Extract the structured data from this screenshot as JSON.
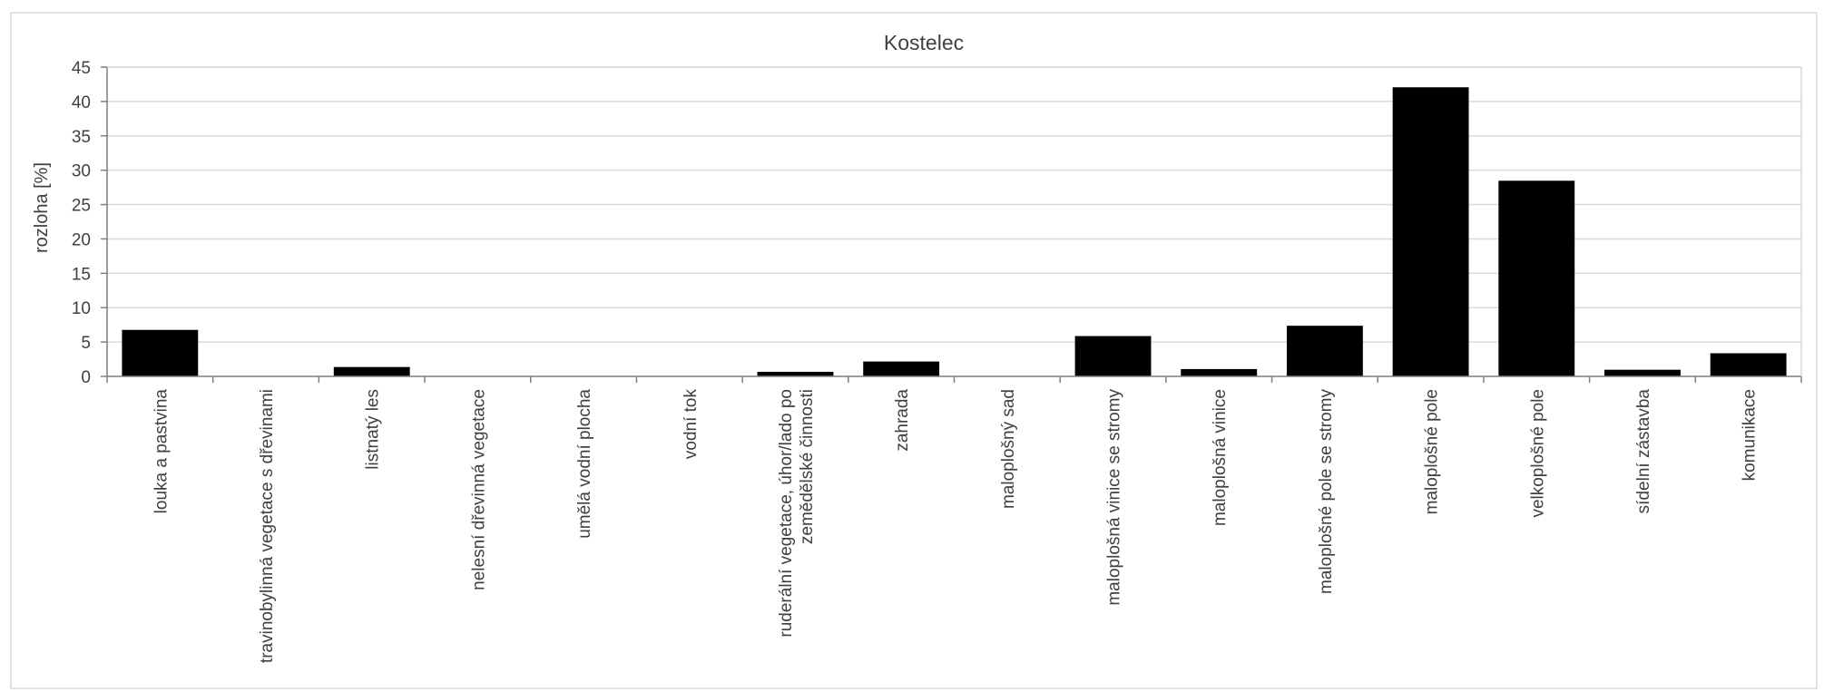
{
  "chart_data": {
    "type": "bar",
    "title": "Kostelec",
    "xlabel": "",
    "ylabel": "rozloha [%]",
    "ylim": [
      0,
      45
    ],
    "yticks": [
      0,
      5,
      10,
      15,
      20,
      25,
      30,
      35,
      40,
      45
    ],
    "grid": true,
    "legend": "none",
    "bar_color": "#000000",
    "categories": [
      [
        "louka a pastvina"
      ],
      [
        "travinobylinná vegetace s dřevinami"
      ],
      [
        "listnatý les"
      ],
      [
        "nelesní dřevinná vegetace"
      ],
      [
        "umělá vodní plocha"
      ],
      [
        "vodní tok"
      ],
      [
        "ruderální vegetace, úhor/lado po",
        "zemědělské činnosti"
      ],
      [
        "zahrada"
      ],
      [
        "maloplošný sad"
      ],
      [
        "maloplošná vinice se stromy"
      ],
      [
        "maloplošná vinice"
      ],
      [
        "maloplošné pole se stromy"
      ],
      [
        "maloplošné pole"
      ],
      [
        "velkoplošné pole"
      ],
      [
        "sídelní zástavba"
      ],
      [
        "komunikace"
      ]
    ],
    "values": [
      6.7,
      0,
      1.3,
      0,
      0,
      0,
      0.6,
      2.1,
      0,
      5.8,
      1.0,
      7.3,
      42.0,
      28.4,
      0.9,
      3.3
    ]
  }
}
